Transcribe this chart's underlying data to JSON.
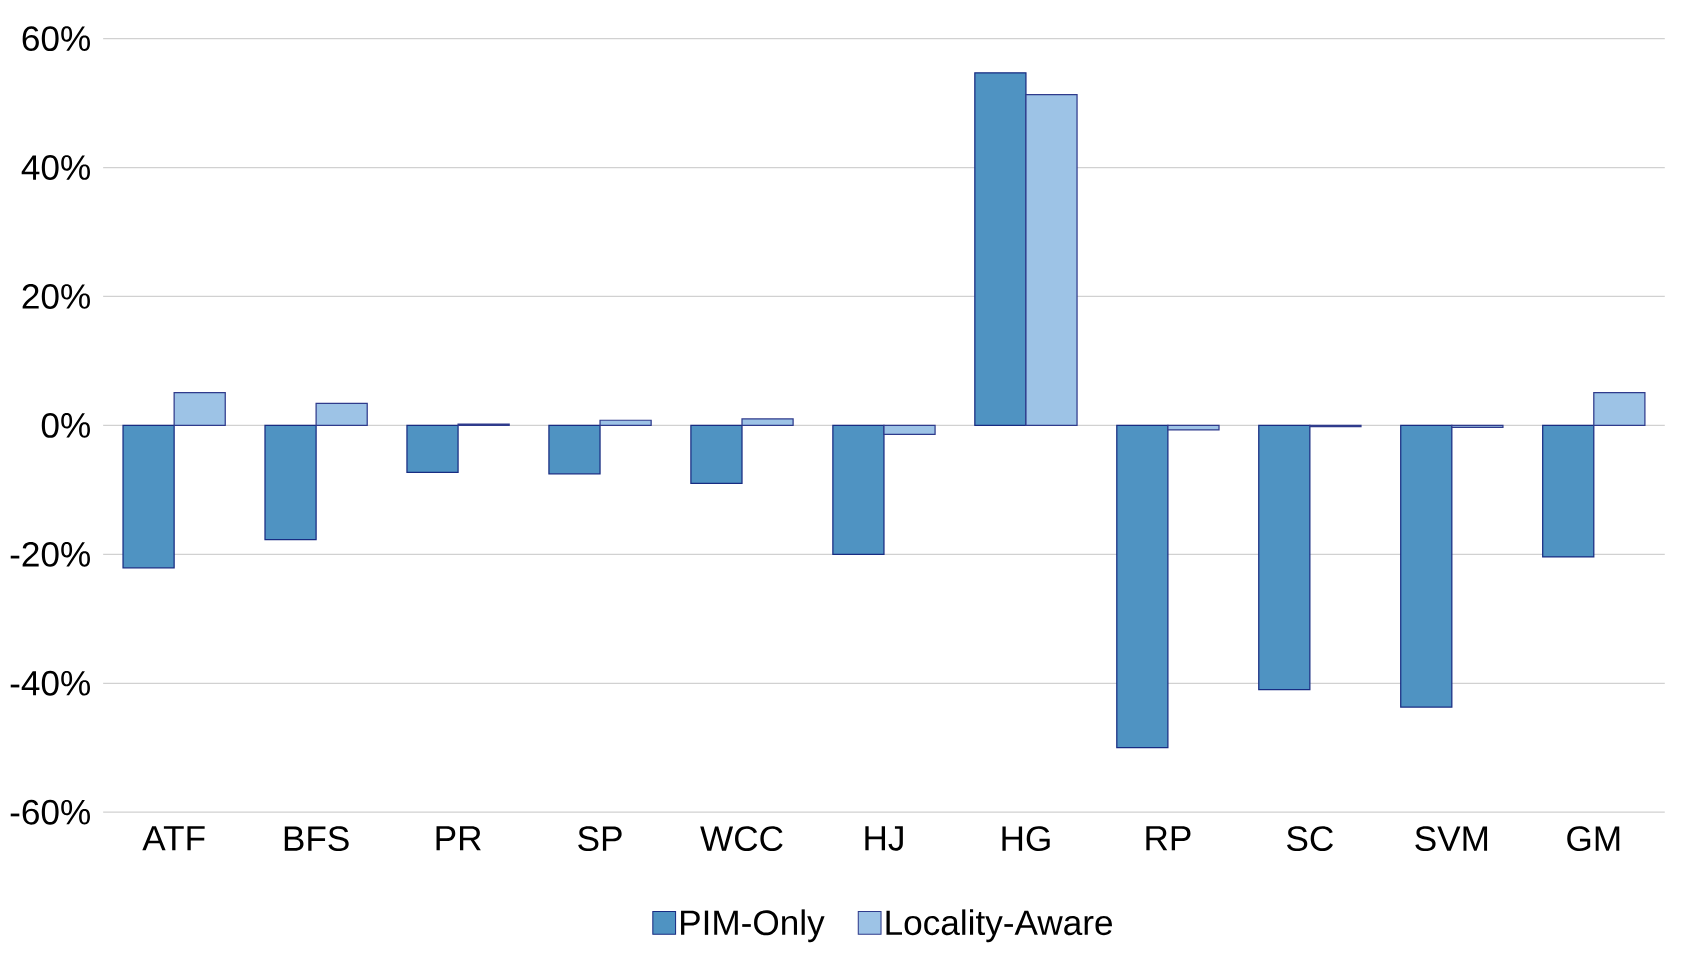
{
  "chart_data": {
    "type": "bar",
    "categories": [
      "ATF",
      "BFS",
      "PR",
      "SP",
      "WCC",
      "HJ",
      "HG",
      "RP",
      "SC",
      "SVM",
      "GM"
    ],
    "series": [
      {
        "name": "PIM-Only",
        "color": "#4f93c2",
        "values": [
          -22.1,
          -17.7,
          -7.3,
          -7.5,
          -9.0,
          -20.0,
          54.7,
          -50.0,
          -41.0,
          -43.7,
          -20.4
        ]
      },
      {
        "name": "Locality-Aware",
        "color": "#9dc3e6",
        "values": [
          5.1,
          3.4,
          0.2,
          0.8,
          1.0,
          -1.4,
          51.3,
          -0.7,
          -0.2,
          -0.3,
          5.1
        ]
      }
    ],
    "ylim": [
      -60,
      60
    ],
    "yticks": [
      {
        "value": -60,
        "label": "-60%"
      },
      {
        "value": -40,
        "label": "-40%"
      },
      {
        "value": -20,
        "label": "-20%"
      },
      {
        "value": 0,
        "label": "0%"
      },
      {
        "value": 20,
        "label": "20%"
      },
      {
        "value": 40,
        "label": "40%"
      },
      {
        "value": 60,
        "label": "60%"
      }
    ],
    "grid": "y",
    "legend": "bottom"
  }
}
